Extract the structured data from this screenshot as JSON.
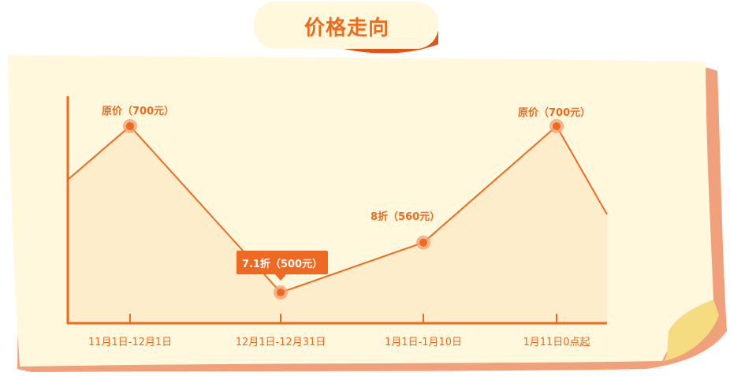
{
  "title": "价格走向",
  "colors": {
    "accent": "#f06a1e",
    "paper": "#fff8dc",
    "fill": "#fdebc8",
    "shadow": "#f0a07a",
    "curl": "#f5dc80"
  },
  "chart_data": {
    "type": "area",
    "categories": [
      "11月1日-12月1日",
      "12月1日-12月31日",
      "1月1日-1月10日",
      "1月11日0点起"
    ],
    "values": [
      700,
      500,
      560,
      700
    ],
    "point_labels": [
      "原价（700元）",
      "7.1折（500元）",
      "8折（560元）",
      "原价（700元）"
    ],
    "highlight_index": 1,
    "ylim": [
      440,
      760
    ]
  }
}
